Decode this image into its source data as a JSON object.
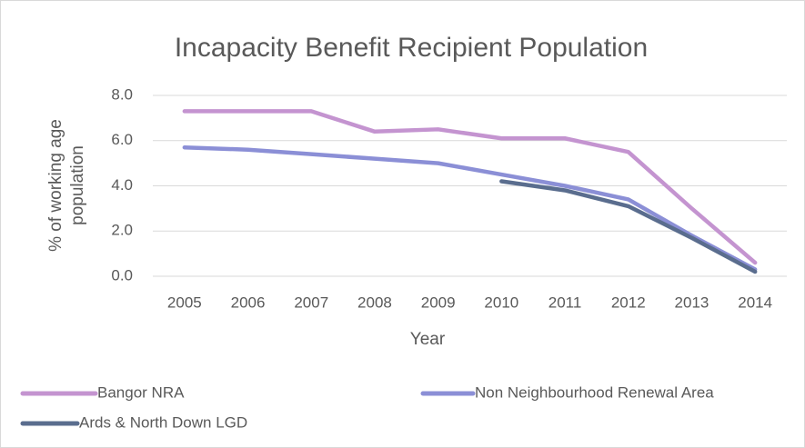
{
  "chart_data": {
    "type": "line",
    "title": "Incapacity Benefit Recipient Population",
    "xlabel": "Year",
    "ylabel": [
      "% of working age",
      "population"
    ],
    "categories": [
      "2005",
      "2006",
      "2007",
      "2008",
      "2009",
      "2010",
      "2011",
      "2012",
      "2013",
      "2014"
    ],
    "series": [
      {
        "name": "Bangor NRA",
        "color": "#c494d0",
        "values": [
          7.3,
          7.3,
          7.3,
          6.4,
          6.5,
          6.1,
          6.1,
          5.5,
          3.0,
          0.6
        ]
      },
      {
        "name": "Non Neighbourhood Renewal Area",
        "color": "#8b8fd6",
        "values": [
          5.7,
          5.6,
          5.4,
          5.2,
          5.0,
          4.5,
          4.0,
          3.4,
          1.8,
          0.3
        ]
      },
      {
        "name": "Ards & North Down LGD",
        "color": "#5a6d8e",
        "values": [
          null,
          null,
          null,
          null,
          null,
          4.2,
          3.8,
          3.1,
          1.7,
          0.2
        ]
      }
    ],
    "ylim": [
      0,
      8
    ],
    "yticks": [
      {
        "value": 0,
        "label": "0.0"
      },
      {
        "value": 2,
        "label": "2.0"
      },
      {
        "value": 4,
        "label": "4.0"
      },
      {
        "value": 6,
        "label": "6.0"
      },
      {
        "value": 8,
        "label": "8.0"
      }
    ],
    "grid": true,
    "legend": "bottom"
  }
}
